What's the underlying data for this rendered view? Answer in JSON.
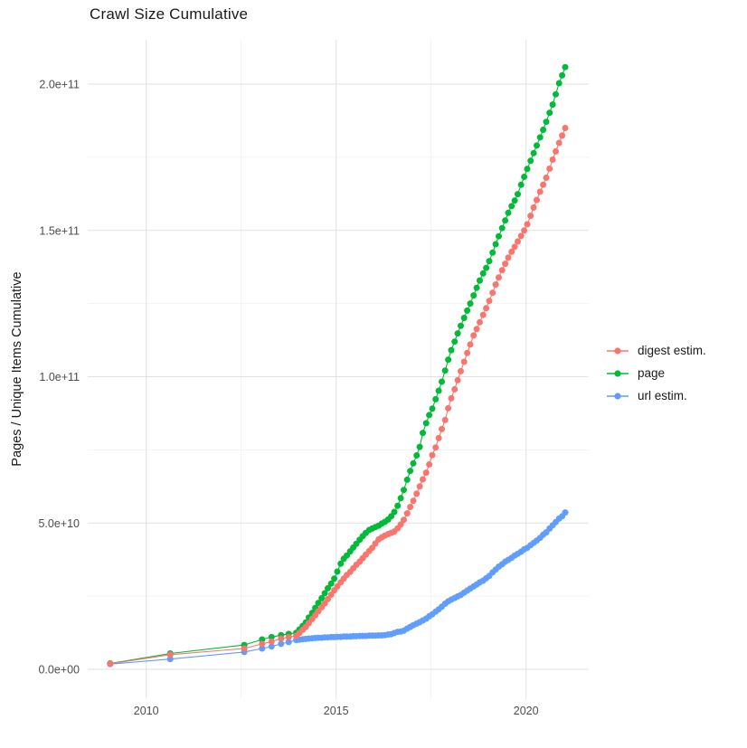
{
  "title": "Crawl Size Cumulative",
  "chart_data": {
    "type": "line",
    "title": "Crawl Size Cumulative",
    "xlabel": "",
    "ylabel": "Pages / Unique Items Cumulative",
    "value_unit": "1e9 (billions); y axis shown in scientific notation",
    "x_range": [
      2008.6,
      2021.7
    ],
    "y_range_e9": [
      0,
      215
    ],
    "grid": "on",
    "legend_position": "right",
    "x_ticks": [
      {
        "value": 2010,
        "label": "2010"
      },
      {
        "value": 2015,
        "label": "2015"
      },
      {
        "value": 2020,
        "label": "2020"
      }
    ],
    "x_minor": [
      2012.5,
      2017.5
    ],
    "y_ticks": [
      {
        "value_e9": 0,
        "label": "0.0e+00"
      },
      {
        "value_e9": 50,
        "label": "5.0e+10"
      },
      {
        "value_e9": 100,
        "label": "1.0e+11"
      },
      {
        "value_e9": 150,
        "label": "1.5e+11"
      },
      {
        "value_e9": 200,
        "label": "2.0e+11"
      }
    ],
    "y_minor": [
      25,
      75,
      125,
      175
    ],
    "series": [
      {
        "name": "digest estim.",
        "color": "#F8766D",
        "points": [
          [
            2009.05,
            1.9
          ],
          [
            2010.63,
            5.0
          ],
          [
            2012.58,
            7.1
          ],
          [
            2013.05,
            8.7
          ],
          [
            2013.3,
            9.5
          ],
          [
            2013.55,
            10.5
          ],
          [
            2013.75,
            11.0
          ],
          [
            2013.95,
            11.4
          ],
          [
            2014.03,
            12.4
          ],
          [
            2014.12,
            13.5
          ],
          [
            2014.2,
            14.5
          ],
          [
            2014.28,
            15.8
          ],
          [
            2014.37,
            17.2
          ],
          [
            2014.45,
            18.5
          ],
          [
            2014.53,
            19.8
          ],
          [
            2014.62,
            21.2
          ],
          [
            2014.7,
            22.5
          ],
          [
            2014.78,
            24.0
          ],
          [
            2014.87,
            25.5
          ],
          [
            2014.95,
            27.0
          ],
          [
            2015.03,
            28.3
          ],
          [
            2015.12,
            29.7
          ],
          [
            2015.2,
            31.0
          ],
          [
            2015.28,
            32.2
          ],
          [
            2015.37,
            33.3
          ],
          [
            2015.45,
            34.5
          ],
          [
            2015.53,
            35.7
          ],
          [
            2015.62,
            36.8
          ],
          [
            2015.7,
            38.0
          ],
          [
            2015.78,
            39.2
          ],
          [
            2015.87,
            40.4
          ],
          [
            2015.95,
            41.5
          ],
          [
            2016.03,
            43.0
          ],
          [
            2016.12,
            44.4
          ],
          [
            2016.2,
            45.1
          ],
          [
            2016.28,
            45.7
          ],
          [
            2016.37,
            46.2
          ],
          [
            2016.45,
            46.6
          ],
          [
            2016.53,
            47.1
          ],
          [
            2016.62,
            48.2
          ],
          [
            2016.7,
            49.5
          ],
          [
            2016.78,
            51.1
          ],
          [
            2016.87,
            53.3
          ],
          [
            2016.95,
            55.5
          ],
          [
            2017.03,
            57.6
          ],
          [
            2017.12,
            60.0
          ],
          [
            2017.2,
            62.5
          ],
          [
            2017.28,
            64.9
          ],
          [
            2017.37,
            67.2
          ],
          [
            2017.45,
            70.0
          ],
          [
            2017.53,
            73.2
          ],
          [
            2017.62,
            75.8
          ],
          [
            2017.7,
            79.0
          ],
          [
            2017.78,
            82.1
          ],
          [
            2017.87,
            85.2
          ],
          [
            2017.95,
            89.2
          ],
          [
            2018.03,
            92.6
          ],
          [
            2018.12,
            95.7
          ],
          [
            2018.2,
            98.8
          ],
          [
            2018.28,
            101.9
          ],
          [
            2018.37,
            105.1
          ],
          [
            2018.45,
            108.1
          ],
          [
            2018.53,
            111.0
          ],
          [
            2018.62,
            114.1
          ],
          [
            2018.7,
            116.3
          ],
          [
            2018.78,
            118.6
          ],
          [
            2018.87,
            121.1
          ],
          [
            2018.95,
            123.4
          ],
          [
            2019.03,
            125.9
          ],
          [
            2019.12,
            128.7
          ],
          [
            2019.2,
            131.5
          ],
          [
            2019.28,
            133.9
          ],
          [
            2019.37,
            136.4
          ],
          [
            2019.45,
            138.6
          ],
          [
            2019.53,
            140.7
          ],
          [
            2019.62,
            142.7
          ],
          [
            2019.7,
            144.4
          ],
          [
            2019.78,
            146.2
          ],
          [
            2019.87,
            148.1
          ],
          [
            2019.95,
            150.0
          ],
          [
            2020.03,
            152.1
          ],
          [
            2020.12,
            155.0
          ],
          [
            2020.2,
            157.8
          ],
          [
            2020.28,
            160.4
          ],
          [
            2020.37,
            163.2
          ],
          [
            2020.45,
            165.6
          ],
          [
            2020.53,
            168.0
          ],
          [
            2020.62,
            171.1
          ],
          [
            2020.7,
            174.2
          ],
          [
            2020.78,
            177.0
          ],
          [
            2020.87,
            179.9
          ],
          [
            2020.95,
            182.4
          ],
          [
            2021.03,
            185.0
          ]
        ]
      },
      {
        "name": "page",
        "color": "#00BA38",
        "points": [
          [
            2009.05,
            2.0
          ],
          [
            2010.63,
            5.4
          ],
          [
            2012.58,
            8.3
          ],
          [
            2013.05,
            10.2
          ],
          [
            2013.3,
            11.0
          ],
          [
            2013.55,
            11.7
          ],
          [
            2013.75,
            12.1
          ],
          [
            2013.95,
            12.5
          ],
          [
            2014.03,
            13.6
          ],
          [
            2014.12,
            14.8
          ],
          [
            2014.2,
            16.0
          ],
          [
            2014.28,
            17.7
          ],
          [
            2014.37,
            19.3
          ],
          [
            2014.45,
            21.0
          ],
          [
            2014.53,
            22.7
          ],
          [
            2014.62,
            24.3
          ],
          [
            2014.7,
            26.0
          ],
          [
            2014.78,
            27.7
          ],
          [
            2014.87,
            29.3
          ],
          [
            2014.95,
            31.0
          ],
          [
            2015.03,
            33.4
          ],
          [
            2015.12,
            36.1
          ],
          [
            2015.2,
            37.8
          ],
          [
            2015.28,
            38.9
          ],
          [
            2015.37,
            40.3
          ],
          [
            2015.45,
            41.6
          ],
          [
            2015.53,
            42.9
          ],
          [
            2015.62,
            44.3
          ],
          [
            2015.7,
            45.5
          ],
          [
            2015.78,
            46.6
          ],
          [
            2015.87,
            47.6
          ],
          [
            2015.95,
            48.1
          ],
          [
            2016.03,
            48.6
          ],
          [
            2016.12,
            49.1
          ],
          [
            2016.2,
            49.8
          ],
          [
            2016.28,
            50.4
          ],
          [
            2016.37,
            51.2
          ],
          [
            2016.45,
            52.3
          ],
          [
            2016.53,
            53.8
          ],
          [
            2016.62,
            55.9
          ],
          [
            2016.7,
            58.5
          ],
          [
            2016.78,
            61.3
          ],
          [
            2016.87,
            64.8
          ],
          [
            2016.95,
            67.8
          ],
          [
            2017.03,
            70.4
          ],
          [
            2017.12,
            73.1
          ],
          [
            2017.2,
            76.0
          ],
          [
            2017.28,
            80.8
          ],
          [
            2017.37,
            84.1
          ],
          [
            2017.45,
            86.9
          ],
          [
            2017.53,
            89.1
          ],
          [
            2017.62,
            92.3
          ],
          [
            2017.7,
            95.2
          ],
          [
            2017.78,
            98.3
          ],
          [
            2017.87,
            102.1
          ],
          [
            2017.95,
            105.8
          ],
          [
            2018.03,
            109.1
          ],
          [
            2018.12,
            112.0
          ],
          [
            2018.2,
            114.8
          ],
          [
            2018.28,
            117.4
          ],
          [
            2018.37,
            120.1
          ],
          [
            2018.45,
            122.6
          ],
          [
            2018.53,
            125.0
          ],
          [
            2018.62,
            127.8
          ],
          [
            2018.7,
            130.4
          ],
          [
            2018.78,
            132.9
          ],
          [
            2018.87,
            135.3
          ],
          [
            2018.95,
            137.2
          ],
          [
            2019.03,
            139.5
          ],
          [
            2019.12,
            142.4
          ],
          [
            2019.2,
            145.3
          ],
          [
            2019.28,
            148.0
          ],
          [
            2019.37,
            150.8
          ],
          [
            2019.45,
            153.4
          ],
          [
            2019.53,
            156.0
          ],
          [
            2019.62,
            158.3
          ],
          [
            2019.7,
            160.2
          ],
          [
            2019.78,
            162.4
          ],
          [
            2019.87,
            165.6
          ],
          [
            2019.95,
            168.3
          ],
          [
            2020.03,
            171.0
          ],
          [
            2020.12,
            173.8
          ],
          [
            2020.2,
            176.4
          ],
          [
            2020.28,
            179.0
          ],
          [
            2020.37,
            181.8
          ],
          [
            2020.45,
            184.4
          ],
          [
            2020.53,
            187.1
          ],
          [
            2020.62,
            190.2
          ],
          [
            2020.7,
            193.0
          ],
          [
            2020.78,
            196.5
          ],
          [
            2020.87,
            200.3
          ],
          [
            2020.95,
            203.0
          ],
          [
            2021.03,
            205.8
          ]
        ]
      },
      {
        "name": "url estim.",
        "color": "#619CFF",
        "points": [
          [
            2009.05,
            1.8
          ],
          [
            2010.63,
            3.5
          ],
          [
            2012.58,
            5.9
          ],
          [
            2013.05,
            7.1
          ],
          [
            2013.3,
            7.8
          ],
          [
            2013.55,
            8.7
          ],
          [
            2013.75,
            9.3
          ],
          [
            2013.95,
            10.0
          ],
          [
            2014.03,
            10.1
          ],
          [
            2014.12,
            10.3
          ],
          [
            2014.2,
            10.4
          ],
          [
            2014.28,
            10.5
          ],
          [
            2014.37,
            10.6
          ],
          [
            2014.45,
            10.7
          ],
          [
            2014.53,
            10.8
          ],
          [
            2014.62,
            10.8
          ],
          [
            2014.7,
            10.9
          ],
          [
            2014.78,
            10.9
          ],
          [
            2014.87,
            11.0
          ],
          [
            2014.95,
            11.0
          ],
          [
            2015.03,
            11.1
          ],
          [
            2015.12,
            11.1
          ],
          [
            2015.2,
            11.2
          ],
          [
            2015.28,
            11.2
          ],
          [
            2015.37,
            11.2
          ],
          [
            2015.45,
            11.3
          ],
          [
            2015.53,
            11.3
          ],
          [
            2015.62,
            11.4
          ],
          [
            2015.7,
            11.4
          ],
          [
            2015.78,
            11.4
          ],
          [
            2015.87,
            11.5
          ],
          [
            2015.95,
            11.5
          ],
          [
            2016.03,
            11.5
          ],
          [
            2016.12,
            11.6
          ],
          [
            2016.2,
            11.6
          ],
          [
            2016.28,
            11.7
          ],
          [
            2016.37,
            11.9
          ],
          [
            2016.45,
            12.0
          ],
          [
            2016.53,
            12.4
          ],
          [
            2016.62,
            12.8
          ],
          [
            2016.7,
            12.9
          ],
          [
            2016.78,
            13.2
          ],
          [
            2016.87,
            13.9
          ],
          [
            2016.95,
            14.5
          ],
          [
            2017.03,
            15.1
          ],
          [
            2017.12,
            15.6
          ],
          [
            2017.2,
            16.1
          ],
          [
            2017.28,
            16.7
          ],
          [
            2017.37,
            17.3
          ],
          [
            2017.45,
            18.1
          ],
          [
            2017.53,
            18.8
          ],
          [
            2017.62,
            19.7
          ],
          [
            2017.7,
            20.5
          ],
          [
            2017.78,
            21.4
          ],
          [
            2017.87,
            22.4
          ],
          [
            2017.95,
            23.2
          ],
          [
            2018.03,
            23.8
          ],
          [
            2018.12,
            24.4
          ],
          [
            2018.2,
            24.9
          ],
          [
            2018.28,
            25.4
          ],
          [
            2018.37,
            26.2
          ],
          [
            2018.45,
            26.9
          ],
          [
            2018.53,
            27.6
          ],
          [
            2018.62,
            28.3
          ],
          [
            2018.7,
            29.0
          ],
          [
            2018.78,
            29.7
          ],
          [
            2018.87,
            30.3
          ],
          [
            2018.95,
            31.1
          ],
          [
            2019.03,
            31.9
          ],
          [
            2019.12,
            33.1
          ],
          [
            2019.2,
            34.1
          ],
          [
            2019.28,
            35.1
          ],
          [
            2019.37,
            35.9
          ],
          [
            2019.45,
            36.8
          ],
          [
            2019.53,
            37.4
          ],
          [
            2019.62,
            38.1
          ],
          [
            2019.7,
            38.9
          ],
          [
            2019.78,
            39.5
          ],
          [
            2019.87,
            40.2
          ],
          [
            2019.95,
            41.0
          ],
          [
            2020.03,
            41.5
          ],
          [
            2020.12,
            42.4
          ],
          [
            2020.2,
            43.2
          ],
          [
            2020.28,
            44.0
          ],
          [
            2020.37,
            44.9
          ],
          [
            2020.45,
            46.0
          ],
          [
            2020.53,
            46.8
          ],
          [
            2020.62,
            48.1
          ],
          [
            2020.7,
            49.2
          ],
          [
            2020.78,
            50.3
          ],
          [
            2020.87,
            51.5
          ],
          [
            2020.95,
            52.3
          ],
          [
            2021.03,
            53.6
          ]
        ]
      }
    ]
  },
  "legend": {
    "items": [
      {
        "label": "digest estim.",
        "color": "#F8766D"
      },
      {
        "label": "page",
        "color": "#00BA38"
      },
      {
        "label": "url estim.",
        "color": "#619CFF"
      }
    ]
  },
  "colors": {
    "major_grid": "#e2e2e2",
    "minor_grid": "#f0f0f0",
    "tick_label": "#4d4d4d",
    "text": "#1a1a1a"
  }
}
